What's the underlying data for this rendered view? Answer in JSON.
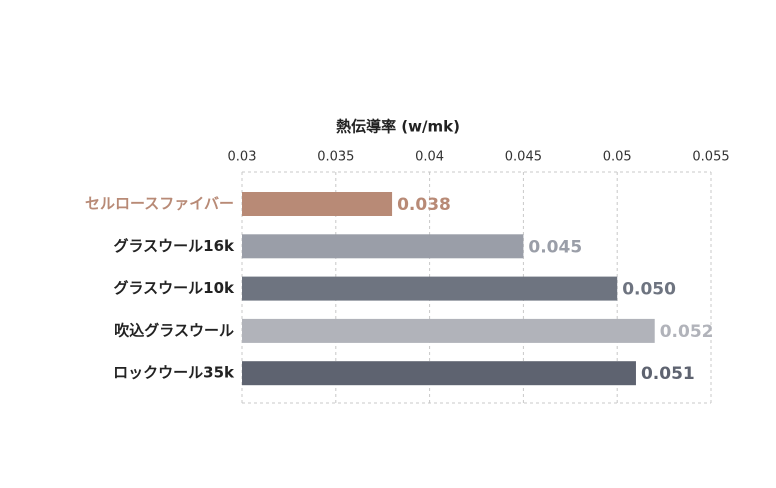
{
  "chart_data": {
    "type": "hbar",
    "title": "熱伝導率 (w/mk)",
    "categories": [
      "セルロースファイバー",
      "グラスウール16k",
      "グラスウール10k",
      "吹込グラスウール",
      "ロックウール35k"
    ],
    "values": [
      0.038,
      0.045,
      0.05,
      0.052,
      0.051
    ],
    "value_labels": [
      "0.038",
      "0.045",
      "0.050",
      "0.052",
      "0.051"
    ],
    "colors": [
      "#b88a76",
      "#9a9ea8",
      "#6e7480",
      "#b1b3ba",
      "#5e6370"
    ],
    "label_colors": [
      "#b88a76",
      "#222222",
      "#222222",
      "#222222",
      "#222222"
    ],
    "xlim": [
      0.03,
      0.055
    ],
    "xticks": [
      0.03,
      0.035,
      0.04,
      0.045,
      0.05,
      0.055
    ],
    "grid": true
  }
}
